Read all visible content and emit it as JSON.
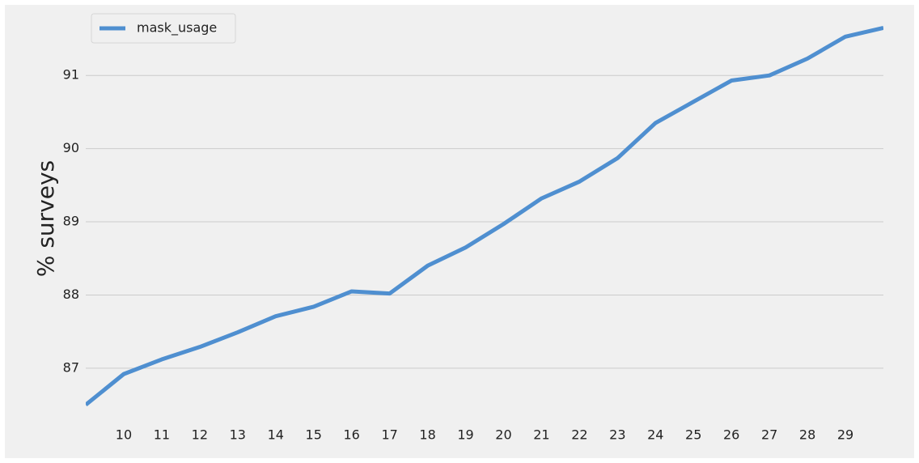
{
  "chart_data": {
    "type": "line",
    "y_label": "% surveys",
    "x": [
      9,
      10,
      11,
      12,
      13,
      14,
      15,
      16,
      17,
      18,
      19,
      20,
      21,
      22,
      23,
      24,
      25,
      26,
      27,
      28,
      29,
      30
    ],
    "series": [
      {
        "name": "mask_usage",
        "color": "#4f8fd0",
        "values": [
          86.5,
          86.92,
          87.12,
          87.29,
          87.49,
          87.71,
          87.84,
          88.05,
          88.02,
          88.4,
          88.65,
          88.97,
          89.32,
          89.55,
          89.87,
          90.35,
          90.64,
          90.93,
          91.0,
          91.23,
          91.53,
          91.65
        ]
      }
    ],
    "xlim": [
      9,
      30
    ],
    "xticks": [
      10,
      11,
      12,
      13,
      14,
      15,
      16,
      17,
      18,
      19,
      20,
      21,
      22,
      23,
      24,
      25,
      26,
      27,
      28,
      29
    ],
    "ylim": [
      86.28,
      91.92
    ],
    "yticks": [
      87,
      88,
      89,
      90,
      91
    ],
    "grid": true,
    "legend": "upper left"
  }
}
